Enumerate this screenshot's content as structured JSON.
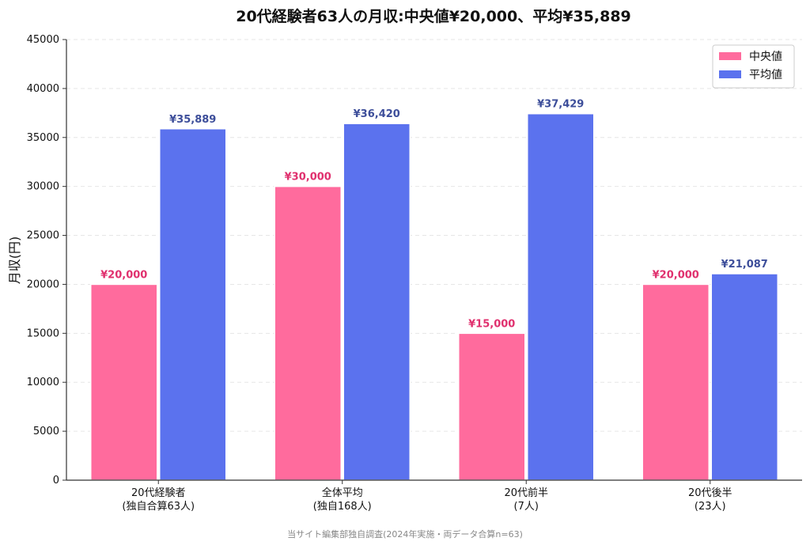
{
  "chart_data": {
    "type": "bar",
    "title": "20代経験者63人の月収:中央値¥20,000、平均¥35,889",
    "ylabel": "月収(円)",
    "ylim": [
      0,
      45000
    ],
    "yticks": [
      0,
      5000,
      10000,
      15000,
      20000,
      25000,
      30000,
      35000,
      40000,
      45000
    ],
    "grid": true,
    "legend_position": "top-right",
    "categories": [
      [
        "20代経験者",
        "(独自合算63人)"
      ],
      [
        "全体平均",
        "(独自168人)"
      ],
      [
        "20代前半",
        "(7人)"
      ],
      [
        "20代後半",
        "(23人)"
      ]
    ],
    "series": [
      {
        "name": "中央値",
        "color": "#ff6b9d",
        "label_color": "#e0306e",
        "values": [
          20000,
          30000,
          15000,
          20000
        ],
        "labels": [
          "¥20,000",
          "¥30,000",
          "¥15,000",
          "¥20,000"
        ]
      },
      {
        "name": "平均値",
        "color": "#5b72ee",
        "label_color": "#3d4e9a",
        "values": [
          35889,
          36420,
          37429,
          21087
        ],
        "labels": [
          "¥35,889",
          "¥36,420",
          "¥37,429",
          "¥21,087"
        ]
      }
    ],
    "source_note": "当サイト編集部独自調査(2024年実施・両データ合算n=63)"
  }
}
